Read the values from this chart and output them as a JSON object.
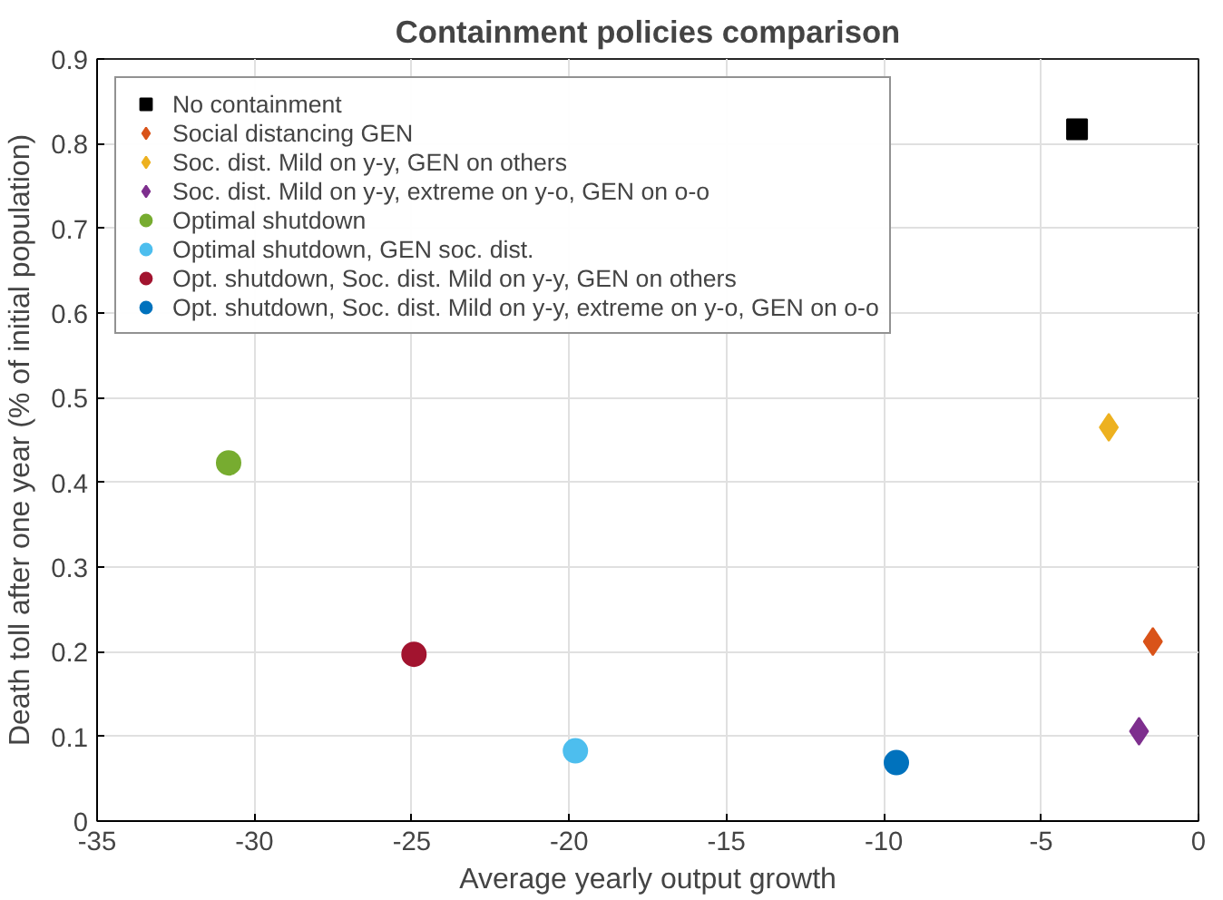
{
  "chart_data": {
    "type": "scatter",
    "title": "Containment policies comparison",
    "xlabel": "Average yearly output growth",
    "ylabel": "Death toll after one year (% of initial population)",
    "xlim": [
      -35,
      0
    ],
    "ylim": [
      0,
      0.9
    ],
    "xticks": [
      -35,
      -30,
      -25,
      -20,
      -15,
      -10,
      -5,
      0
    ],
    "yticks": [
      0,
      0.1,
      0.2,
      0.3,
      0.4,
      0.5,
      0.6,
      0.7,
      0.8,
      0.9
    ],
    "grid": true,
    "legend": "top left",
    "series": [
      {
        "name": "No containment",
        "color": "#000000",
        "marker": "square",
        "x": [
          -3.86
        ],
        "values": [
          0.817
        ]
      },
      {
        "name": "Social distancing GEN",
        "color": "#d95319",
        "marker": "diamond",
        "x": [
          -1.45
        ],
        "values": [
          0.212
        ]
      },
      {
        "name": "Soc. dist. Mild on y-y, GEN on others",
        "color": "#edb120",
        "marker": "diamond",
        "x": [
          -2.85
        ],
        "values": [
          0.465
        ]
      },
      {
        "name": "Soc. dist. Mild on y-y, extreme on y-o, GEN on o-o",
        "color": "#7e2f8e",
        "marker": "diamond",
        "x": [
          -1.89
        ],
        "values": [
          0.106
        ]
      },
      {
        "name": "Optimal shutdown",
        "color": "#77ac30",
        "marker": "circle",
        "x": [
          -30.82
        ],
        "values": [
          0.423
        ]
      },
      {
        "name": "Optimal shutdown, GEN soc. dist.",
        "color": "#4dbeee",
        "marker": "circle",
        "x": [
          -19.8
        ],
        "values": [
          0.083
        ]
      },
      {
        "name": "Opt. shutdown, Soc. dist. Mild on y-y, GEN on others",
        "color": "#a2142f",
        "marker": "circle",
        "x": [
          -24.93
        ],
        "values": [
          0.197
        ]
      },
      {
        "name": "Opt. shutdown, Soc. dist. Mild on y-y, extreme on y-o, GEN on o-o",
        "color": "#0072bd",
        "marker": "circle",
        "x": [
          -9.6
        ],
        "values": [
          0.069
        ]
      }
    ]
  }
}
